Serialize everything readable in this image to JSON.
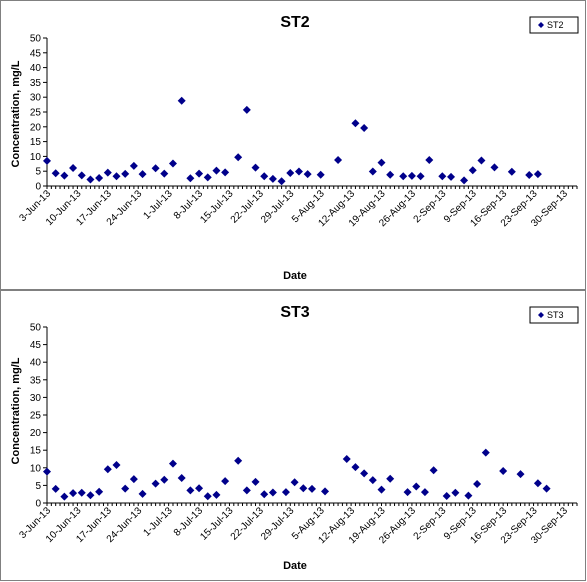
{
  "chart_data": [
    {
      "type": "scatter",
      "title": "ST2",
      "xlabel": "Date",
      "ylabel": "Concentration, mg/L",
      "ylim": [
        0,
        50
      ],
      "yticks": [
        0,
        5,
        10,
        15,
        20,
        25,
        30,
        35,
        40,
        45,
        50
      ],
      "xlim": [
        "2013-06-03",
        "2013-10-03"
      ],
      "xtick_labels": [
        "3-Jun-13",
        "10-Jun-13",
        "17-Jun-13",
        "24-Jun-13",
        "1-Jul-13",
        "8-Jul-13",
        "15-Jul-13",
        "22-Jul-13",
        "29-Jul-13",
        "5-Aug-13",
        "12-Aug-13",
        "19-Aug-13",
        "26-Aug-13",
        "2-Sep-13",
        "9-Sep-13",
        "16-Sep-13",
        "23-Sep-13",
        "30-Sep-13"
      ],
      "grid": false,
      "legend_position": "top-right",
      "marker_color": "#00008b",
      "series": [
        {
          "name": "ST2",
          "points": [
            [
              "2013-06-03",
              8.5
            ],
            [
              "2013-06-05",
              4.3
            ],
            [
              "2013-06-07",
              3.5
            ],
            [
              "2013-06-09",
              6.1
            ],
            [
              "2013-06-11",
              3.6
            ],
            [
              "2013-06-13",
              2.2
            ],
            [
              "2013-06-15",
              2.7
            ],
            [
              "2013-06-17",
              4.5
            ],
            [
              "2013-06-19",
              3.3
            ],
            [
              "2013-06-21",
              4.1
            ],
            [
              "2013-06-23",
              6.8
            ],
            [
              "2013-06-25",
              4.0
            ],
            [
              "2013-06-28",
              6.0
            ],
            [
              "2013-06-30",
              4.2
            ],
            [
              "2013-07-02",
              7.6
            ],
            [
              "2013-07-04",
              28.8
            ],
            [
              "2013-07-06",
              2.6
            ],
            [
              "2013-07-08",
              4.2
            ],
            [
              "2013-07-10",
              2.9
            ],
            [
              "2013-07-12",
              5.2
            ],
            [
              "2013-07-14",
              4.6
            ],
            [
              "2013-07-17",
              9.7
            ],
            [
              "2013-07-19",
              25.7
            ],
            [
              "2013-07-21",
              6.2
            ],
            [
              "2013-07-23",
              3.3
            ],
            [
              "2013-07-25",
              2.4
            ],
            [
              "2013-07-27",
              1.6
            ],
            [
              "2013-07-29",
              4.4
            ],
            [
              "2013-07-31",
              4.9
            ],
            [
              "2013-08-02",
              4.0
            ],
            [
              "2013-08-05",
              3.8
            ],
            [
              "2013-08-09",
              8.8
            ],
            [
              "2013-08-13",
              21.2
            ],
            [
              "2013-08-15",
              19.6
            ],
            [
              "2013-08-17",
              4.9
            ],
            [
              "2013-08-19",
              7.9
            ],
            [
              "2013-08-21",
              3.8
            ],
            [
              "2013-08-24",
              3.3
            ],
            [
              "2013-08-26",
              3.4
            ],
            [
              "2013-08-28",
              3.3
            ],
            [
              "2013-08-30",
              8.8
            ],
            [
              "2013-09-02",
              3.3
            ],
            [
              "2013-09-04",
              3.1
            ],
            [
              "2013-09-07",
              1.9
            ],
            [
              "2013-09-09",
              5.3
            ],
            [
              "2013-09-11",
              8.6
            ],
            [
              "2013-09-14",
              6.3
            ],
            [
              "2013-09-18",
              4.8
            ],
            [
              "2013-09-22",
              3.7
            ],
            [
              "2013-09-24",
              4.0
            ]
          ]
        }
      ]
    },
    {
      "type": "scatter",
      "title": "ST3",
      "xlabel": "Date",
      "ylabel": "Concentration, mg/L",
      "ylim": [
        0,
        50
      ],
      "yticks": [
        0,
        5,
        10,
        15,
        20,
        25,
        30,
        35,
        40,
        45,
        50
      ],
      "xlim": [
        "2013-06-03",
        "2013-10-03"
      ],
      "xtick_labels": [
        "3-Jun-13",
        "10-Jun-13",
        "17-Jun-13",
        "24-Jun-13",
        "1-Jul-13",
        "8-Jul-13",
        "15-Jul-13",
        "22-Jul-13",
        "29-Jul-13",
        "5-Aug-13",
        "12-Aug-13",
        "19-Aug-13",
        "26-Aug-13",
        "2-Sep-13",
        "9-Sep-13",
        "16-Sep-13",
        "23-Sep-13",
        "30-Sep-13"
      ],
      "grid": false,
      "legend_position": "top-right",
      "marker_color": "#00008b",
      "series": [
        {
          "name": "ST3",
          "points": [
            [
              "2013-06-03",
              8.9
            ],
            [
              "2013-06-05",
              4.0
            ],
            [
              "2013-06-07",
              1.8
            ],
            [
              "2013-06-09",
              2.8
            ],
            [
              "2013-06-11",
              2.9
            ],
            [
              "2013-06-13",
              2.2
            ],
            [
              "2013-06-15",
              3.2
            ],
            [
              "2013-06-17",
              9.6
            ],
            [
              "2013-06-19",
              10.8
            ],
            [
              "2013-06-21",
              4.1
            ],
            [
              "2013-06-23",
              6.8
            ],
            [
              "2013-06-25",
              2.6
            ],
            [
              "2013-06-28",
              5.5
            ],
            [
              "2013-06-30",
              6.6
            ],
            [
              "2013-07-02",
              11.2
            ],
            [
              "2013-07-04",
              7.1
            ],
            [
              "2013-07-06",
              3.6
            ],
            [
              "2013-07-08",
              4.2
            ],
            [
              "2013-07-10",
              1.9
            ],
            [
              "2013-07-12",
              2.3
            ],
            [
              "2013-07-14",
              6.2
            ],
            [
              "2013-07-17",
              12.0
            ],
            [
              "2013-07-19",
              3.6
            ],
            [
              "2013-07-21",
              6.0
            ],
            [
              "2013-07-23",
              2.5
            ],
            [
              "2013-07-25",
              3.0
            ],
            [
              "2013-07-28",
              3.1
            ],
            [
              "2013-07-30",
              5.9
            ],
            [
              "2013-08-01",
              4.2
            ],
            [
              "2013-08-03",
              4.0
            ],
            [
              "2013-08-06",
              3.3
            ],
            [
              "2013-08-11",
              12.5
            ],
            [
              "2013-08-13",
              10.2
            ],
            [
              "2013-08-15",
              8.4
            ],
            [
              "2013-08-17",
              6.5
            ],
            [
              "2013-08-19",
              3.8
            ],
            [
              "2013-08-21",
              6.9
            ],
            [
              "2013-08-25",
              3.1
            ],
            [
              "2013-08-27",
              4.7
            ],
            [
              "2013-08-29",
              3.1
            ],
            [
              "2013-08-31",
              9.3
            ],
            [
              "2013-09-03",
              2.0
            ],
            [
              "2013-09-05",
              2.9
            ],
            [
              "2013-09-08",
              2.1
            ],
            [
              "2013-09-10",
              5.4
            ],
            [
              "2013-09-12",
              14.3
            ],
            [
              "2013-09-16",
              9.1
            ],
            [
              "2013-09-20",
              8.2
            ],
            [
              "2013-09-24",
              5.6
            ],
            [
              "2013-09-26",
              4.1
            ]
          ]
        }
      ]
    }
  ]
}
